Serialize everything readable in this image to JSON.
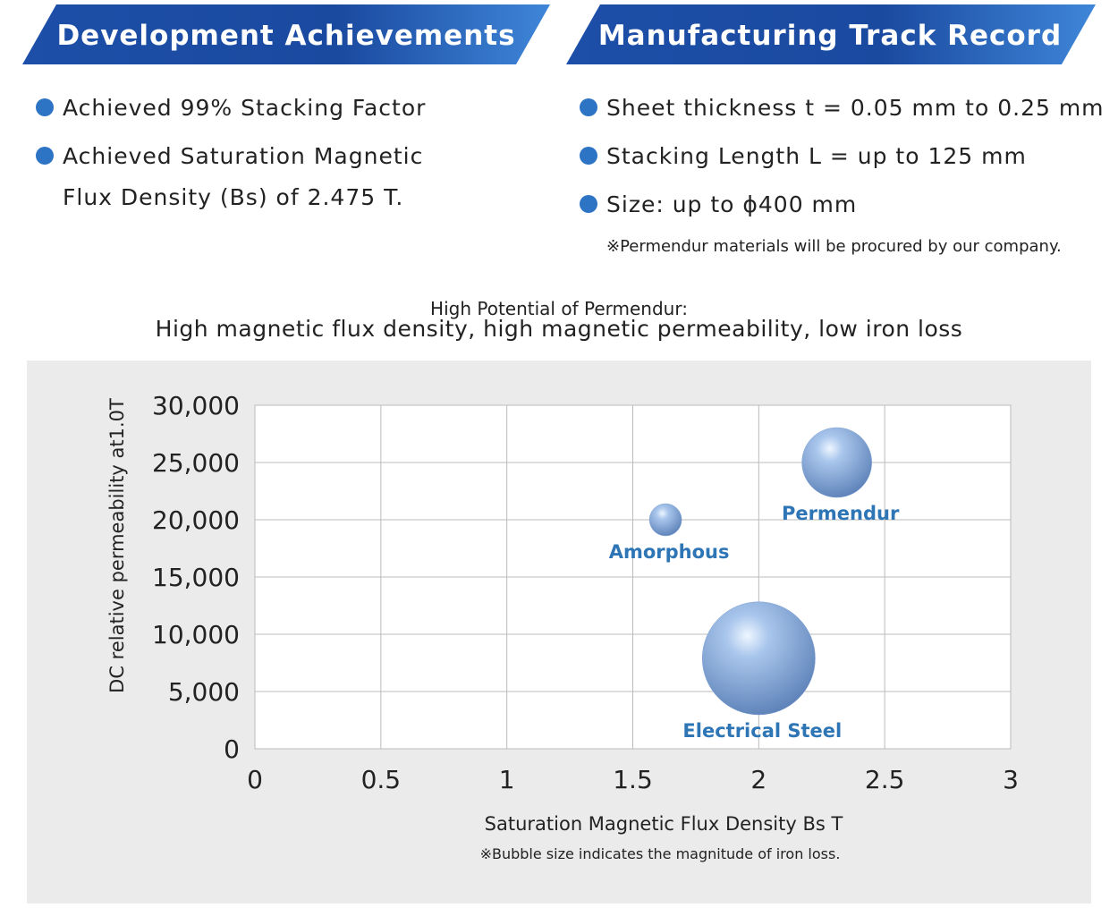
{
  "sections": [
    {
      "title": "Development Achievements",
      "items": [
        "Achieved 99% Stacking Factor",
        "Achieved Saturation Magnetic Flux Density (Bs) of 2.475 T."
      ]
    },
    {
      "title": "Manufacturing Track Record",
      "items": [
        "Sheet thickness t = 0.05 mm to 0.25 mm",
        "Stacking Length L = up to 125 mm",
        "Size: up to ϕ400 mm"
      ],
      "note": "※Permendur materials will be procured by our company."
    }
  ],
  "chart_data": {
    "type": "bubble",
    "title": "High Potential of Permendur:",
    "subtitle": "High magnetic flux density, high magnetic permeability, low iron loss",
    "x_label": "Saturation Magnetic Flux Density Bs T",
    "y_label": "DC relative permeability at1.0T",
    "note": "※Bubble size indicates the magnitude of iron loss.",
    "series": [
      {
        "name": "Amorphous",
        "color": "#7fa3d6",
        "x": [
          1.63
        ],
        "values": [
          20000
        ],
        "sizes": [
          1
        ]
      },
      {
        "name": "Permendur",
        "color": "#7fa3d6",
        "x": [
          2.31
        ],
        "values": [
          25000
        ],
        "sizes": [
          4.7
        ]
      },
      {
        "name": "Electrical Steel",
        "color": "#7fa3d6",
        "x": [
          2.0
        ],
        "values": [
          7900
        ],
        "sizes": [
          12.3
        ]
      }
    ],
    "label_color": "#2e75b6",
    "xlim": [
      0,
      3
    ],
    "xticks": [
      0,
      0.5,
      1,
      1.5,
      2,
      2.5,
      3
    ],
    "ylim": [
      0,
      30000
    ],
    "yticks": [
      0,
      {
        "value": 5000,
        "label": "5,000"
      },
      {
        "value": 10000,
        "label": "10,000"
      },
      {
        "value": 15000,
        "label": "15,000"
      },
      {
        "value": 20000,
        "label": "20,000"
      },
      {
        "value": 25000,
        "label": "25,000"
      },
      {
        "value": 30000,
        "label": "30,000"
      }
    ],
    "grid": true
  }
}
